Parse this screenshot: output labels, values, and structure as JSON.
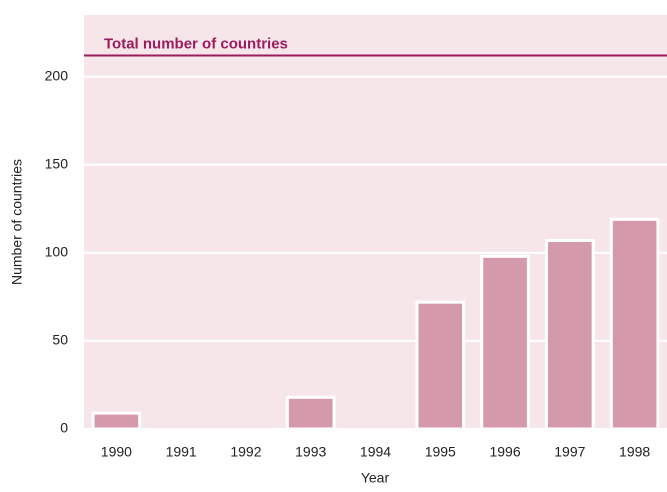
{
  "chart_data": {
    "type": "bar",
    "x_label": "Year",
    "y_label": "Number of countries",
    "categories": [
      "1990",
      "1991",
      "1992",
      "1993",
      "1994",
      "1995",
      "1996",
      "1997",
      "1998"
    ],
    "values": [
      9,
      0,
      0,
      18,
      0,
      72,
      98,
      107,
      119
    ],
    "color": "#d49aab",
    "ylim": [
      0,
      235
    ],
    "yticks": [
      0,
      50,
      100,
      150,
      200
    ],
    "grid": true,
    "reference_line": {
      "value": 212,
      "label": "Total number of countries",
      "color": "#9b1c5a"
    }
  }
}
